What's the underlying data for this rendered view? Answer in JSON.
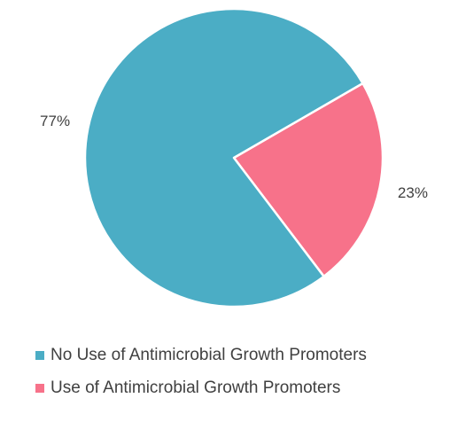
{
  "chart_data": {
    "type": "pie",
    "title": "",
    "start_angle_deg": 60,
    "direction": "clockwise",
    "slices": [
      {
        "label": "Use of Antimicrobial Growth Promoters",
        "value": 23,
        "data_label": "23%",
        "color": "#F7728A"
      },
      {
        "label": "No Use of Antimicrobial Growth Promoters",
        "value": 77,
        "data_label": "77%",
        "color": "#4BADC5"
      }
    ],
    "legend": {
      "position": "bottom-left",
      "entries": [
        {
          "label": "No Use of Antimicrobial Growth Promoters",
          "color": "#4BADC5"
        },
        {
          "label": "Use of Antimicrobial Growth Promoters",
          "color": "#F7728A"
        }
      ]
    }
  }
}
